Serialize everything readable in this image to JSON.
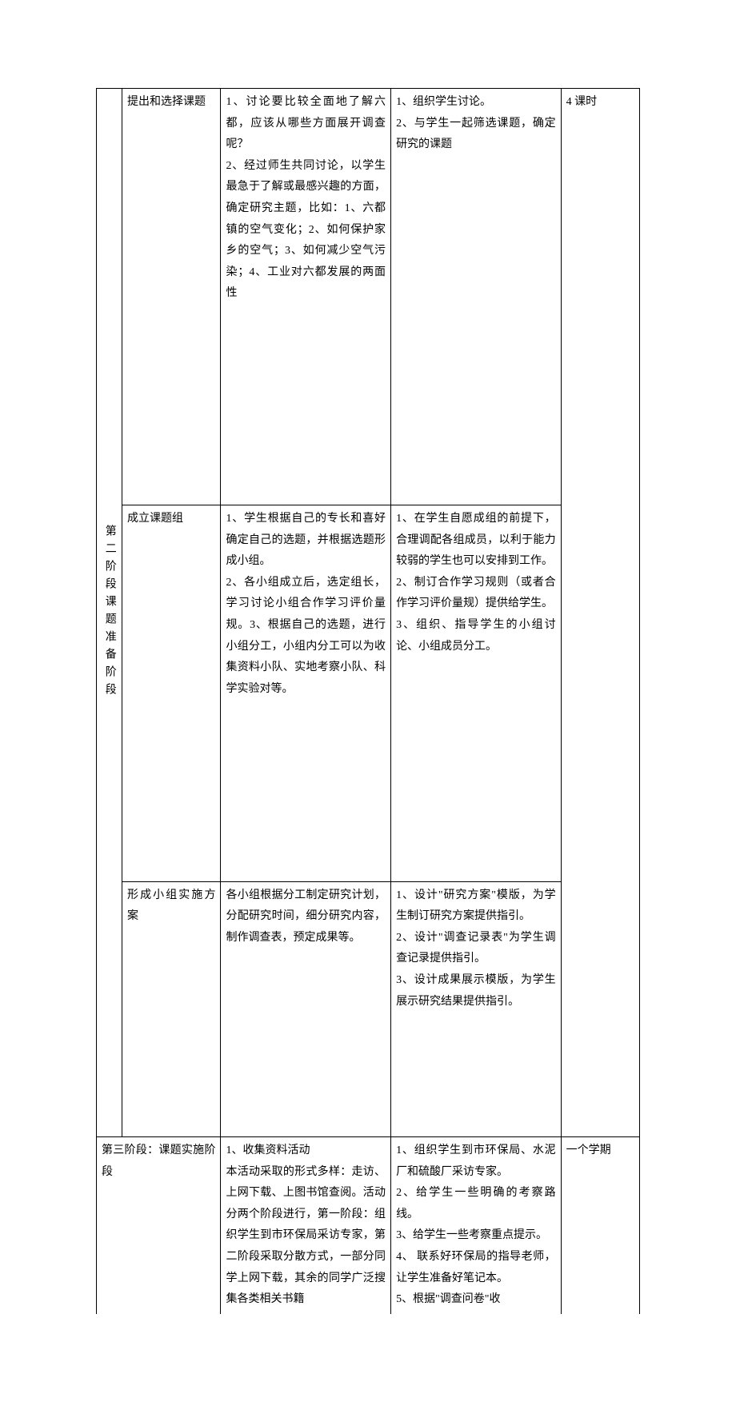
{
  "table": {
    "columns": {
      "phase_width": 28,
      "subphase_width": 108,
      "student_width": 186,
      "teacher_width": 186,
      "time_width": 86
    },
    "phase2": {
      "label": "第二阶段课题准备阶段",
      "row1": {
        "subphase": "提出和选择课题",
        "student": "1、讨论要比较全面地了解六都，应该从哪些方面展开调查呢？\n2、经过师生共同讨论，以学生最急于了解或最感兴趣的方面，确定研究主题，比如：1、六都镇的空气变化；2、如何保护家乡的空气；3、如何减少空气污染；4、工业对六都发展的两面性",
        "teacher": "1、组织学生讨论。\n2、与学生一起筛选课题，确定研究的课题",
        "time": "4 课时"
      },
      "row2": {
        "subphase": "成立课题组",
        "student": "1、学生根据自己的专长和喜好确定自己的选题，并根据选题形成小组。\n2、各小组成立后，选定组长，学习讨论小组合作学习评价量规。3、根据自己的选题，进行小组分工，小组内分工可以为收集资料小队、实地考察小队、科学实验对等。",
        "teacher": "1、在学生自愿成组的前提下，合理调配各组成员，以利于能力较弱的学生也可以安排到工作。\n2、制订合作学习规则（或者合作学习评价量规）提供给学生。\n3、组织、指导学生的小组讨论、小组成员分工。"
      },
      "row3": {
        "subphase": "形成小组实施方案",
        "student": "各小组根据分工制定研究计划，分配研究时间，细分研究内容，制作调查表，预定成果等。",
        "teacher": "1、设计\"研究方案\"模版，为学生制订研究方案提供指引。\n2、设计\"调查记录表\"为学生调查记录提供指引。\n3、设计成果展示模版，为学生展示研究结果提供指引。"
      }
    },
    "phase3": {
      "label": "第三阶段：课题实施阶段",
      "student": "1、收集资料活动\n本活动采取的形式多样：走访、上网下载、上图书馆查阅。活动分两个阶段进行，第一阶段：组织学生到市环保局采访专家，第二阶段采取分散方式，一部分同学上网下载，其余的同学广泛搜集各类相关书籍",
      "teacher": "1、组织学生到市环保局、水泥厂和硫酸厂采访专家。\n2、给学生一些明确的考察路线。\n3、给学生一些考察重点提示。\n4、 联系好环保局的指导老师，让学生准备好笔记本。\n5、根据\"调查问卷\"收",
      "time": "一个学期"
    }
  },
  "styling": {
    "background_color": "#ffffff",
    "border_color": "#000000",
    "text_color": "#000000",
    "font_size": 14,
    "line_height": 1.9,
    "font_family": "SimSun"
  }
}
